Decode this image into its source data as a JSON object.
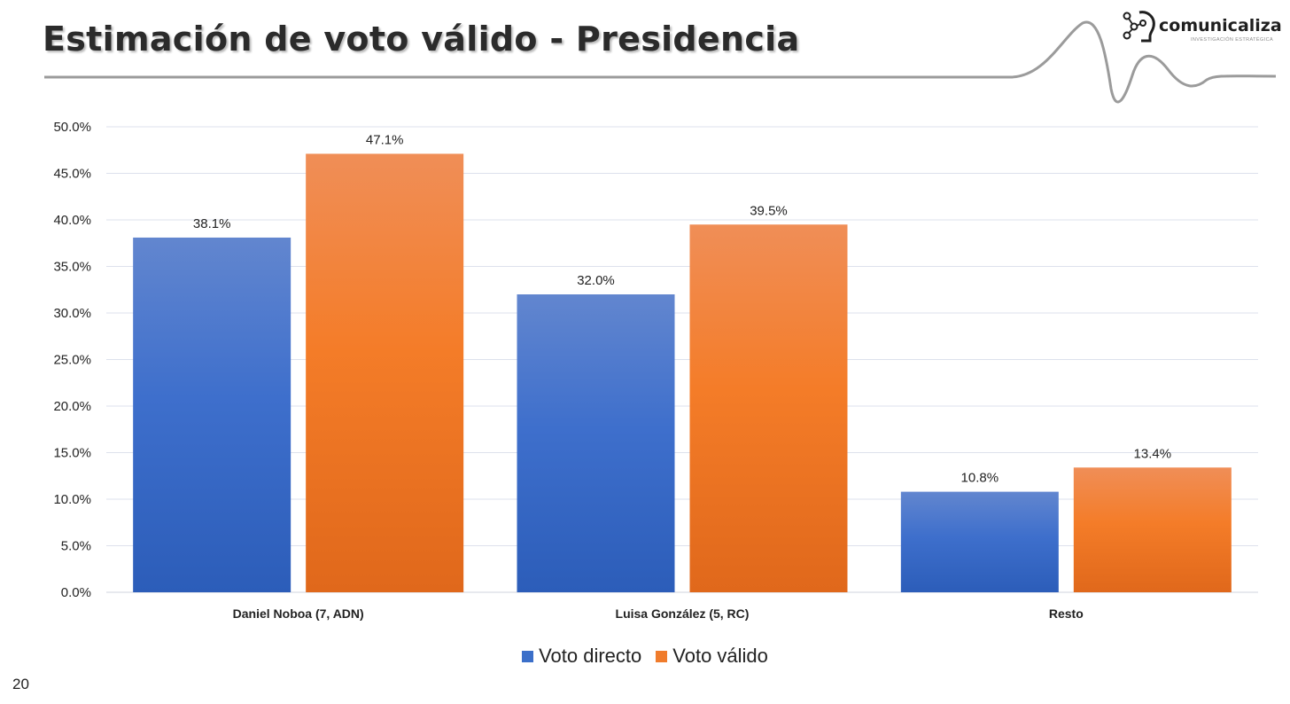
{
  "slide": {
    "title": "Estimación de voto válido - Presidencia",
    "page_number": "20"
  },
  "logo": {
    "name": "comunicaliza",
    "tagline": "INVESTIGACIÓN ESTRATÉGICA"
  },
  "colors": {
    "series_1": "#3b6fc9",
    "series_2": "#f07c2c",
    "grid": "#dde1ec",
    "decor_line": "#9b9b9b"
  },
  "chart_data": {
    "type": "bar",
    "title": "",
    "xlabel": "",
    "ylabel": "",
    "categories": [
      "Daniel Noboa (7, ADN)",
      "Luisa González (5, RC)",
      "Resto"
    ],
    "series": [
      {
        "name": "Voto directo",
        "values": [
          38.1,
          32.0,
          10.8
        ],
        "labels": [
          "38.1%",
          "32.0%",
          "10.8%"
        ]
      },
      {
        "name": "Voto válido",
        "values": [
          47.1,
          39.5,
          13.4
        ],
        "labels": [
          "47.1%",
          "39.5%",
          "13.4%"
        ]
      }
    ],
    "ylim": [
      0,
      50
    ],
    "yticks": [
      "0.0%",
      "5.0%",
      "10.0%",
      "15.0%",
      "20.0%",
      "25.0%",
      "30.0%",
      "35.0%",
      "40.0%",
      "45.0%",
      "50.0%"
    ],
    "grid": true,
    "legend_position": "bottom"
  }
}
